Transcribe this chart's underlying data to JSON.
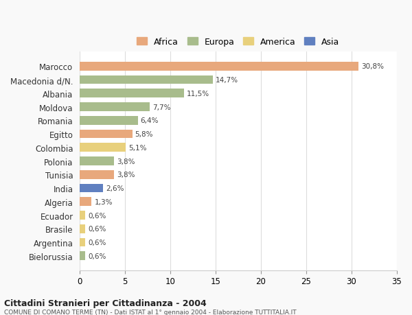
{
  "categories": [
    "Marocco",
    "Macedonia d/N.",
    "Albania",
    "Moldova",
    "Romania",
    "Egitto",
    "Colombia",
    "Polonia",
    "Tunisia",
    "India",
    "Algeria",
    "Ecuador",
    "Brasile",
    "Argentina",
    "Bielorussia"
  ],
  "values": [
    30.8,
    14.7,
    11.5,
    7.7,
    6.4,
    5.8,
    5.1,
    3.8,
    3.8,
    2.6,
    1.3,
    0.6,
    0.6,
    0.6,
    0.6
  ],
  "labels": [
    "30,8%",
    "14,7%",
    "11,5%",
    "7,7%",
    "6,4%",
    "5,8%",
    "5,1%",
    "3,8%",
    "3,8%",
    "2,6%",
    "1,3%",
    "0,6%",
    "0,6%",
    "0,6%",
    "0,6%"
  ],
  "continents": [
    "Africa",
    "Europa",
    "Europa",
    "Europa",
    "Europa",
    "Africa",
    "America",
    "Europa",
    "Africa",
    "Asia",
    "Africa",
    "America",
    "America",
    "America",
    "Europa"
  ],
  "colors": {
    "Africa": "#E8A87C",
    "Europa": "#A8BC8C",
    "America": "#E8D07C",
    "Asia": "#6080C0"
  },
  "legend_labels": [
    "Africa",
    "Europa",
    "America",
    "Asia"
  ],
  "legend_colors": [
    "#E8A87C",
    "#A8BC8C",
    "#E8D07C",
    "#6080C0"
  ],
  "title": "Cittadini Stranieri per Cittadinanza - 2004",
  "subtitle": "COMUNE DI COMANO TERME (TN) - Dati ISTAT al 1° gennaio 2004 - Elaborazione TUTTITALIA.IT",
  "xlim": [
    0,
    35
  ],
  "xticks": [
    0,
    5,
    10,
    15,
    20,
    25,
    30,
    35
  ],
  "background_color": "#f9f9f9",
  "bar_background": "#ffffff",
  "grid_color": "#dddddd"
}
